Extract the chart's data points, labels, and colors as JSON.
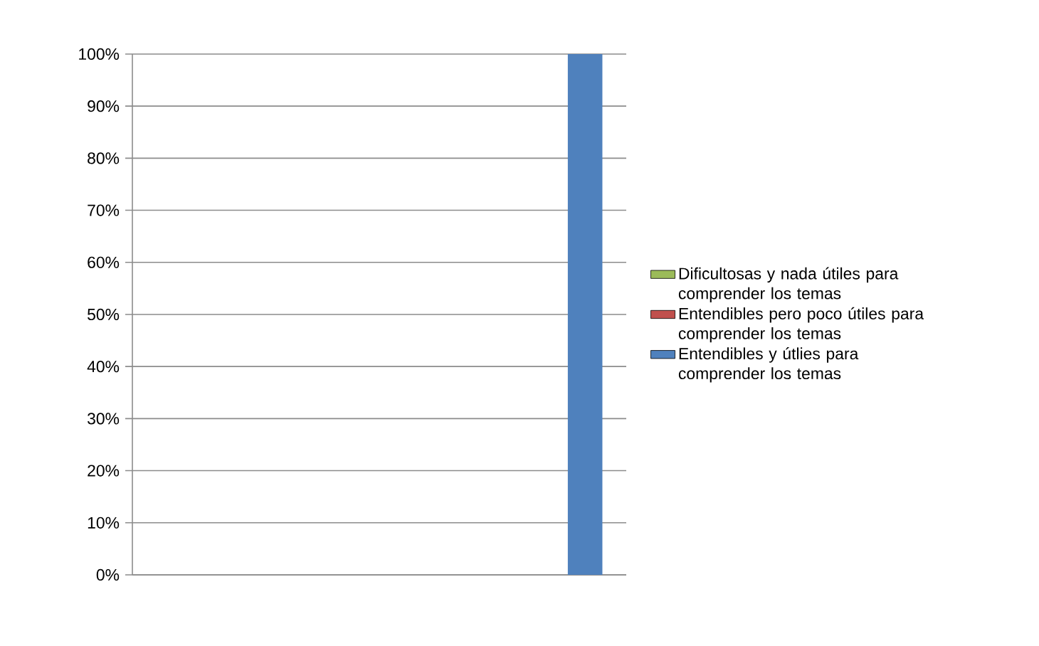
{
  "chart_data": {
    "type": "bar",
    "stacked": true,
    "categories": [
      null,
      null,
      null,
      null,
      null,
      null
    ],
    "series": [
      {
        "name": "Entendibles y útlies para comprender los temas",
        "color": "#4f81bd",
        "values": [
          null,
          null,
          null,
          null,
          null,
          100
        ]
      },
      {
        "name": "Entendibles pero poco útiles para comprender los temas",
        "color": "#c0504d",
        "values": [
          null,
          null,
          null,
          null,
          null,
          null
        ]
      },
      {
        "name": "Dificultosas y nada útiles para comprender los temas",
        "color": "#9bbb59",
        "values": [
          null,
          null,
          null,
          null,
          null,
          null
        ]
      }
    ],
    "ylim": [
      0,
      100
    ],
    "yticks": [
      {
        "value": 0,
        "label": "0%"
      },
      {
        "value": 10,
        "label": "10%"
      },
      {
        "value": 20,
        "label": "20%"
      },
      {
        "value": 30,
        "label": "30%"
      },
      {
        "value": 40,
        "label": "40%"
      },
      {
        "value": 50,
        "label": "50%"
      },
      {
        "value": 60,
        "label": "60%"
      },
      {
        "value": 70,
        "label": "70%"
      },
      {
        "value": 80,
        "label": "80%"
      },
      {
        "value": 90,
        "label": "90%"
      },
      {
        "value": 100,
        "label": "100%"
      }
    ],
    "grid": "y",
    "legend": "right"
  }
}
